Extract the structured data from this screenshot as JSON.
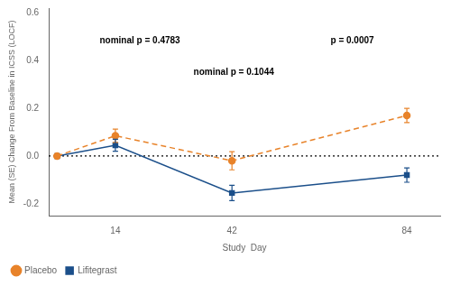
{
  "chart_data": {
    "type": "line",
    "x": [
      0,
      14,
      42,
      84
    ],
    "series": [
      {
        "name": "Placebo",
        "color": "#E8832A",
        "values": [
          0.0,
          0.085,
          -0.02,
          0.17
        ],
        "errors": [
          0.0,
          0.028,
          0.038,
          0.03
        ],
        "line_style": "dashed",
        "marker": "circle"
      },
      {
        "name": "Lifitegrast",
        "color": "#1B4F8A",
        "values": [
          0.0,
          0.045,
          -0.155,
          -0.08
        ],
        "errors": [
          0.0,
          0.025,
          0.032,
          0.03
        ],
        "line_style": "solid",
        "marker": "square"
      }
    ],
    "x_label": "Study  Day",
    "y_label": "Mean (SE) Change From Baseline in ICSS (LOCF)",
    "xlim": [
      -2,
      92
    ],
    "xticks": [
      14,
      42,
      84
    ],
    "ylim": [
      -0.25,
      0.62
    ],
    "yticks": [
      -0.2,
      {
        "value": 0,
        "label": "0.0"
      },
      0.2,
      0.4,
      0.6
    ],
    "reference_lines": [
      {
        "value": 0,
        "line_style": "dotted",
        "color": "#000000"
      }
    ],
    "annotations": [
      "nominal p = 0.4783",
      "nominal p = 0.1044",
      "p = 0.0007"
    ],
    "grid": false,
    "legend": "lower left"
  }
}
